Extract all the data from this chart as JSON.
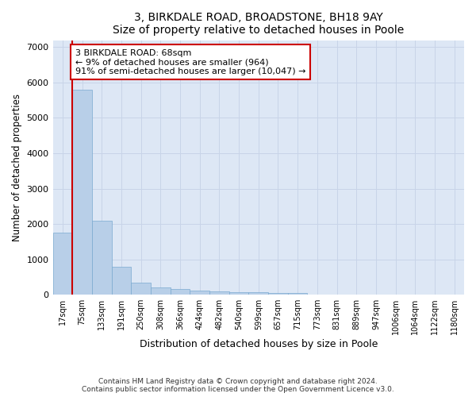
{
  "title_line1": "3, BIRKDALE ROAD, BROADSTONE, BH18 9AY",
  "title_line2": "Size of property relative to detached houses in Poole",
  "xlabel": "Distribution of detached houses by size in Poole",
  "ylabel": "Number of detached properties",
  "footnote1": "Contains HM Land Registry data © Crown copyright and database right 2024.",
  "footnote2": "Contains public sector information licensed under the Open Government Licence v3.0.",
  "bar_labels": [
    "17sqm",
    "75sqm",
    "133sqm",
    "191sqm",
    "250sqm",
    "308sqm",
    "366sqm",
    "424sqm",
    "482sqm",
    "540sqm",
    "599sqm",
    "657sqm",
    "715sqm",
    "773sqm",
    "831sqm",
    "889sqm",
    "947sqm",
    "1006sqm",
    "1064sqm",
    "1122sqm",
    "1180sqm"
  ],
  "bar_values": [
    1750,
    5800,
    2100,
    790,
    340,
    210,
    150,
    120,
    100,
    80,
    65,
    55,
    40,
    0,
    0,
    0,
    0,
    0,
    0,
    0,
    0
  ],
  "bar_color": "#b8cfe8",
  "bar_edge_color": "#7aaad0",
  "grid_color": "#c8d4e8",
  "background_color": "#dde7f5",
  "red_line_color": "#cc0000",
  "annotation_text": "3 BIRKDALE ROAD: 68sqm\n← 9% of detached houses are smaller (964)\n91% of semi-detached houses are larger (10,047) →",
  "annotation_box_color": "#ffffff",
  "annotation_box_edge": "#cc0000",
  "ylim": [
    0,
    7200
  ],
  "yticks": [
    0,
    1000,
    2000,
    3000,
    4000,
    5000,
    6000,
    7000
  ],
  "figsize": [
    6.0,
    5.0
  ],
  "dpi": 100
}
